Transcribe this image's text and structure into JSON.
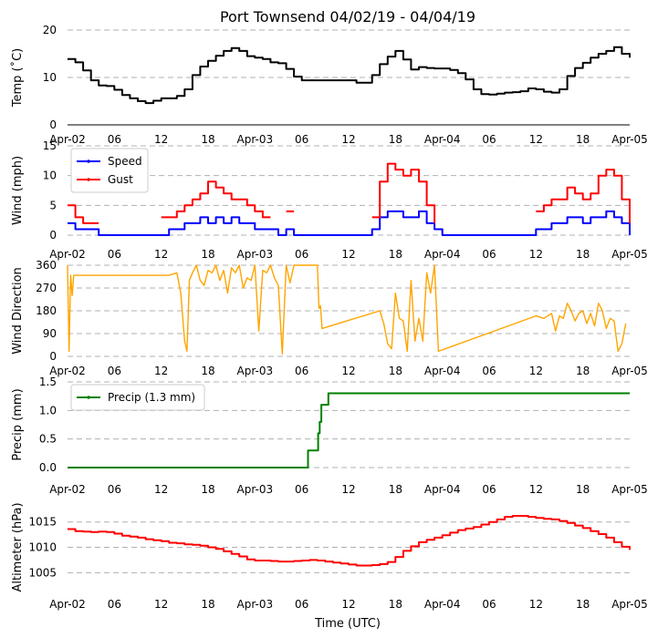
{
  "title": "Port Townsend 04/02/19 - 04/04/19",
  "xlabel": "Time (UTC)",
  "x_ticks": [
    {
      "h": 0,
      "label": "Apr-02"
    },
    {
      "h": 6,
      "label": "06"
    },
    {
      "h": 12,
      "label": "12"
    },
    {
      "h": 18,
      "label": "18"
    },
    {
      "h": 24,
      "label": "Apr-03"
    },
    {
      "h": 30,
      "label": "06"
    },
    {
      "h": 36,
      "label": "12"
    },
    {
      "h": 42,
      "label": "18"
    },
    {
      "h": 48,
      "label": "Apr-04"
    },
    {
      "h": 54,
      "label": "06"
    },
    {
      "h": 60,
      "label": "12"
    },
    {
      "h": 66,
      "label": "18"
    },
    {
      "h": 72,
      "label": "Apr-05"
    }
  ],
  "colors": {
    "temp": "#000000",
    "speed": "#0000ff",
    "gust": "#ff0000",
    "dir": "#ffa500",
    "precip": "#008000",
    "alt": "#ff0000",
    "grid": "#b0b0b0"
  },
  "chart_data": [
    {
      "id": "temp",
      "type": "line",
      "ylabel": "Temp (˚C)",
      "ylim": [
        0,
        20
      ],
      "yticks": [
        0,
        10,
        20
      ],
      "axis_line": true,
      "series": [
        {
          "name": "Temp",
          "color": "#000000",
          "step": true,
          "x": [
            0,
            1,
            2,
            3,
            4,
            5,
            6,
            7,
            8,
            9,
            10,
            11,
            12,
            13,
            14,
            15,
            16,
            17,
            18,
            19,
            20,
            21,
            22,
            23,
            24,
            25,
            26,
            27,
            28,
            29,
            30,
            31,
            32,
            33,
            34,
            35,
            36,
            37,
            38,
            39,
            40,
            41,
            42,
            43,
            44,
            45,
            46,
            47,
            48,
            49,
            50,
            51,
            52,
            53,
            54,
            55,
            56,
            57,
            58,
            59,
            60,
            61,
            62,
            63,
            64,
            65,
            66,
            67,
            68,
            69,
            70,
            71,
            72
          ],
          "y": [
            13.9,
            13.2,
            11.5,
            9.4,
            8.3,
            8.2,
            7.4,
            6.3,
            5.6,
            5.0,
            4.6,
            5.1,
            5.6,
            5.6,
            6.1,
            7.5,
            10.5,
            12.3,
            13.5,
            14.6,
            15.6,
            16.2,
            15.6,
            14.5,
            14.2,
            13.9,
            13.2,
            13.0,
            11.8,
            10.2,
            9.4,
            9.4,
            9.4,
            9.4,
            9.4,
            9.4,
            9.4,
            8.9,
            8.9,
            10.5,
            12.8,
            14.4,
            15.6,
            13.8,
            11.7,
            12.2,
            12.0,
            11.9,
            11.9,
            11.6,
            10.9,
            9.6,
            7.5,
            6.5,
            6.4,
            6.6,
            6.8,
            6.9,
            7.1,
            7.7,
            7.5,
            7.0,
            6.8,
            7.5,
            10.3,
            12.0,
            13.1,
            14.2,
            15.0,
            15.6,
            16.4,
            15.0,
            14.2
          ]
        }
      ]
    },
    {
      "id": "wind",
      "type": "line",
      "ylabel": "Wind (mph)",
      "ylim": [
        0,
        15
      ],
      "yticks": [
        0,
        5,
        10,
        15
      ],
      "axis_line": false,
      "legend": {
        "position": "top-left",
        "entries": [
          "Speed",
          "Gust"
        ]
      },
      "series": [
        {
          "name": "Speed",
          "color": "#0000ff",
          "step": true,
          "x": [
            0,
            1,
            2,
            3,
            4,
            5,
            6,
            7,
            8,
            9,
            10,
            11,
            12,
            13,
            14,
            15,
            16,
            17,
            18,
            19,
            20,
            21,
            22,
            23,
            24,
            25,
            26,
            27,
            28,
            29,
            30,
            31,
            32,
            33,
            34,
            35,
            36,
            37,
            38,
            39,
            40,
            41,
            42,
            43,
            44,
            45,
            46,
            47,
            48,
            49,
            50,
            51,
            52,
            53,
            54,
            55,
            56,
            57,
            58,
            59,
            60,
            61,
            62,
            63,
            64,
            65,
            66,
            67,
            68,
            69,
            70,
            71,
            72
          ],
          "y": [
            2,
            1,
            1,
            1,
            0,
            0,
            0,
            0,
            0,
            0,
            0,
            0,
            0,
            1,
            1,
            2,
            2,
            3,
            2,
            3,
            2,
            3,
            2,
            2,
            1,
            1,
            1,
            0,
            1,
            0,
            0,
            0,
            0,
            0,
            0,
            0,
            0,
            0,
            0,
            1,
            3,
            4,
            4,
            3,
            3,
            4,
            2,
            1,
            0,
            0,
            0,
            0,
            0,
            0,
            0,
            0,
            0,
            0,
            0,
            0,
            1,
            1,
            2,
            2,
            3,
            3,
            2,
            3,
            3,
            4,
            3,
            2,
            0
          ]
        },
        {
          "name": "Gust",
          "color": "#ff0000",
          "step": true,
          "x": [
            0,
            1,
            2,
            3,
            4,
            5,
            6,
            7,
            8,
            9,
            10,
            11,
            12,
            13,
            14,
            15,
            16,
            17,
            18,
            19,
            20,
            21,
            22,
            23,
            24,
            25,
            26,
            27,
            28,
            29,
            30,
            31,
            32,
            33,
            34,
            35,
            36,
            37,
            38,
            39,
            40,
            41,
            42,
            43,
            44,
            45,
            46,
            47,
            48,
            49,
            50,
            51,
            52,
            53,
            54,
            55,
            56,
            57,
            58,
            59,
            60,
            61,
            62,
            63,
            64,
            65,
            66,
            67,
            68,
            69,
            70,
            71,
            72
          ],
          "y": [
            5,
            3,
            2,
            2,
            2,
            null,
            null,
            null,
            null,
            null,
            null,
            null,
            3,
            3,
            4,
            5,
            6,
            7,
            9,
            8,
            7,
            6,
            6,
            5,
            4,
            3,
            3,
            null,
            4,
            4,
            null,
            null,
            null,
            null,
            null,
            null,
            null,
            null,
            null,
            3,
            9,
            12,
            11,
            10,
            11,
            9,
            5,
            2,
            null,
            null,
            null,
            null,
            null,
            null,
            null,
            null,
            null,
            null,
            null,
            null,
            4,
            5,
            6,
            6,
            8,
            7,
            6,
            7,
            10,
            11,
            10,
            6,
            2
          ]
        }
      ]
    },
    {
      "id": "dir",
      "type": "line",
      "ylabel": "Wind Direction",
      "ylim": [
        0,
        360
      ],
      "yticks": [
        0,
        90,
        180,
        270,
        360
      ],
      "axis_line": false,
      "series": [
        {
          "name": "Direction",
          "color": "#ffa500",
          "step": false,
          "x": [
            0,
            0.2,
            0.4,
            0.6,
            0.8,
            1,
            2,
            3,
            4,
            5,
            6,
            12,
            13,
            14,
            14.5,
            15,
            15.3,
            15.6,
            16,
            16.5,
            17,
            17.5,
            18,
            18.5,
            19,
            19.5,
            20,
            20.5,
            21,
            21.5,
            22,
            22.5,
            23,
            23.5,
            24,
            24.5,
            25,
            25.5,
            26,
            26.5,
            27,
            27.5,
            28,
            28.5,
            29,
            32,
            32.2,
            32.4,
            32.6,
            40,
            40.5,
            41,
            41.5,
            42,
            42.5,
            43,
            43.5,
            44,
            44.5,
            45,
            45.5,
            46,
            46.5,
            47,
            47.5,
            60,
            61,
            62,
            62.5,
            63,
            63.5,
            64,
            64.5,
            65,
            65.5,
            66,
            66.5,
            67,
            67.5,
            68,
            68.5,
            69,
            69.5,
            70,
            70.5,
            71,
            71.5
          ],
          "y": [
            360,
            20,
            320,
            240,
            320,
            320,
            320,
            320,
            320,
            320,
            320,
            320,
            320,
            330,
            250,
            60,
            20,
            300,
            330,
            360,
            300,
            280,
            340,
            330,
            360,
            300,
            340,
            250,
            350,
            330,
            360,
            270,
            310,
            300,
            360,
            100,
            340,
            330,
            360,
            310,
            280,
            10,
            360,
            290,
            360,
            360,
            190,
            200,
            110,
            180,
            130,
            50,
            30,
            250,
            150,
            140,
            20,
            300,
            60,
            150,
            60,
            330,
            250,
            360,
            20,
            160,
            150,
            170,
            100,
            160,
            150,
            210,
            180,
            140,
            170,
            180,
            130,
            170,
            120,
            210,
            180,
            110,
            150,
            140,
            20,
            50,
            130
          ]
        }
      ]
    },
    {
      "id": "precip",
      "type": "line",
      "ylabel": "Precip (mm)",
      "ylim": [
        0,
        1.5
      ],
      "yticks": [
        0.0,
        0.5,
        1.0,
        1.5
      ],
      "axis_line": false,
      "legend": {
        "position": "top-left",
        "entries": [
          "Precip (1.3 mm)"
        ]
      },
      "series": [
        {
          "name": "Precip (1.3 mm)",
          "color": "#008000",
          "step": true,
          "x": [
            0,
            30.6,
            30.8,
            31.5,
            32.1,
            32.3,
            32.5,
            33.0,
            33.4,
            72
          ],
          "y": [
            0,
            0,
            0.3,
            0.3,
            0.6,
            0.8,
            1.1,
            1.1,
            1.3,
            1.3
          ]
        }
      ]
    },
    {
      "id": "alt",
      "type": "line",
      "ylabel": "Altimeter (hPa)",
      "ylim": [
        1002,
        1018
      ],
      "yticks": [
        1005,
        1010,
        1015
      ],
      "axis_line": false,
      "series": [
        {
          "name": "Altimeter",
          "color": "#ff0000",
          "step": true,
          "x": [
            0,
            1,
            2,
            3,
            4,
            5,
            6,
            7,
            8,
            9,
            10,
            11,
            12,
            13,
            14,
            15,
            16,
            17,
            18,
            19,
            20,
            21,
            22,
            23,
            24,
            25,
            26,
            27,
            28,
            29,
            30,
            31,
            32,
            33,
            34,
            35,
            36,
            37,
            38,
            39,
            40,
            41,
            42,
            43,
            44,
            45,
            46,
            47,
            48,
            49,
            50,
            51,
            52,
            53,
            54,
            55,
            56,
            57,
            58,
            59,
            60,
            61,
            62,
            63,
            64,
            65,
            66,
            67,
            68,
            69,
            70,
            71,
            72
          ],
          "y": [
            1013.6,
            1013.2,
            1013.1,
            1013.0,
            1013.1,
            1013.0,
            1012.7,
            1012.3,
            1012.1,
            1011.9,
            1011.6,
            1011.4,
            1011.2,
            1010.9,
            1010.8,
            1010.6,
            1010.5,
            1010.3,
            1010.0,
            1009.7,
            1009.2,
            1008.7,
            1008.2,
            1007.6,
            1007.4,
            1007.4,
            1007.3,
            1007.2,
            1007.2,
            1007.3,
            1007.4,
            1007.5,
            1007.4,
            1007.2,
            1007.0,
            1006.8,
            1006.6,
            1006.4,
            1006.4,
            1006.5,
            1006.7,
            1007.1,
            1008.1,
            1009.3,
            1010.2,
            1011.0,
            1011.5,
            1011.9,
            1012.4,
            1012.9,
            1013.4,
            1013.7,
            1014.0,
            1014.5,
            1015.0,
            1015.5,
            1016.0,
            1016.2,
            1016.2,
            1016.0,
            1015.8,
            1015.6,
            1015.5,
            1015.2,
            1014.8,
            1014.3,
            1013.8,
            1013.2,
            1012.6,
            1011.9,
            1011.0,
            1010.1,
            1009.5
          ]
        }
      ]
    }
  ]
}
